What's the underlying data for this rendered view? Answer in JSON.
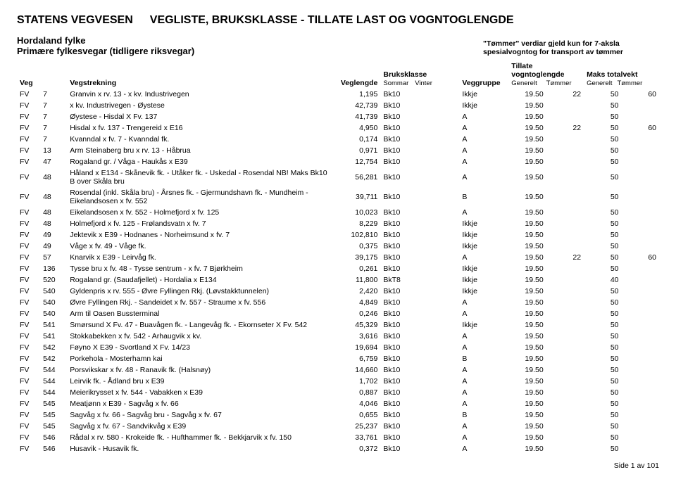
{
  "header": {
    "org": "STATENS VEGVESEN",
    "title": "VEGLISTE, BRUKSKLASSE - TILLATE LAST OG VOGNTOGLENGDE",
    "region": "Hordaland fylke",
    "subregion": "Primære fylkesvegar (tidligere riksvegar)",
    "note1": "\"Tømmer\" verdiar gjeld kun for 7-aksla",
    "note2": "spesialvogntog for transport av tømmer"
  },
  "columns": {
    "veg": "Veg",
    "vegstrekning": "Vegstrekning",
    "veglengde": "Veglengde",
    "bruksklasse": "Bruksklasse",
    "bk_sub1": "Sommar",
    "bk_sub2": "Vinter",
    "veggruppe": "Veggruppe",
    "tillate": "Tillate vogntoglengde",
    "til_sub1": "Generelt",
    "til_sub2": "Tømmer",
    "maks": "Maks totalvekt",
    "maks_sub1": "Generelt",
    "maks_sub2": "Tømmer"
  },
  "rows": [
    {
      "t": "FV",
      "n": "7",
      "d": "Granvin x rv. 13 - x kv. Industrivegen",
      "len": "1,195",
      "bk": "Bk10",
      "grp": "Ikkje",
      "tg": "19.50",
      "tt": "22",
      "mg": "50",
      "mt": "60"
    },
    {
      "t": "FV",
      "n": "7",
      "d": "x kv. Industrivegen - Øystese",
      "len": "42,739",
      "bk": "Bk10",
      "grp": "Ikkje",
      "tg": "19.50",
      "tt": "",
      "mg": "50",
      "mt": ""
    },
    {
      "t": "FV",
      "n": "7",
      "d": "Øystese - Hisdal X Fv. 137",
      "len": "41,739",
      "bk": "Bk10",
      "grp": "A",
      "tg": "19.50",
      "tt": "",
      "mg": "50",
      "mt": ""
    },
    {
      "t": "FV",
      "n": "7",
      "d": "Hisdal x fv. 137 - Trengereid x E16",
      "len": "4,950",
      "bk": "Bk10",
      "grp": "A",
      "tg": "19.50",
      "tt": "22",
      "mg": "50",
      "mt": "60"
    },
    {
      "t": "FV",
      "n": "7",
      "d": "Kvanndal x fv. 7 - Kvanndal fk.",
      "len": "0,174",
      "bk": "Bk10",
      "grp": "A",
      "tg": "19.50",
      "tt": "",
      "mg": "50",
      "mt": ""
    },
    {
      "t": "FV",
      "n": "13",
      "d": "Arm Steinaberg bru x rv. 13 - Håbrua",
      "len": "0,971",
      "bk": "Bk10",
      "grp": "A",
      "tg": "19.50",
      "tt": "",
      "mg": "50",
      "mt": ""
    },
    {
      "t": "FV",
      "n": "47",
      "d": "Rogaland gr. / Våga - Haukås x E39",
      "len": "12,754",
      "bk": "Bk10",
      "grp": "A",
      "tg": "19.50",
      "tt": "",
      "mg": "50",
      "mt": ""
    },
    {
      "t": "FV",
      "n": "48",
      "d": "Håland x E134 - Skånevik fk. - Utåker fk. - Uskedal - Rosendal NB! Maks Bk10 B over Skåla bru",
      "len": "56,281",
      "bk": "Bk10",
      "grp": "A",
      "tg": "19.50",
      "tt": "",
      "mg": "50",
      "mt": ""
    },
    {
      "t": "FV",
      "n": "48",
      "d": "Rosendal (inkl. Skåla bru) - Årsnes fk. - Gjermundshavn fk. - Mundheim - Eikelandsosen x fv. 552",
      "len": "39,711",
      "bk": "Bk10",
      "grp": "B",
      "tg": "19.50",
      "tt": "",
      "mg": "50",
      "mt": ""
    },
    {
      "t": "FV",
      "n": "48",
      "d": "Eikelandsosen x fv. 552 - Holmefjord x fv. 125",
      "len": "10,023",
      "bk": "Bk10",
      "grp": "A",
      "tg": "19.50",
      "tt": "",
      "mg": "50",
      "mt": ""
    },
    {
      "t": "FV",
      "n": "48",
      "d": "Holmefjord x fv. 125 - Frølandsvatn x fv. 7",
      "len": "8,229",
      "bk": "Bk10",
      "grp": "Ikkje",
      "tg": "19.50",
      "tt": "",
      "mg": "50",
      "mt": ""
    },
    {
      "t": "FV",
      "n": "49",
      "d": "Jektevik x E39 - Hodnanes - Norheimsund x fv. 7",
      "len": "102,810",
      "bk": "Bk10",
      "grp": "Ikkje",
      "tg": "19.50",
      "tt": "",
      "mg": "50",
      "mt": ""
    },
    {
      "t": "FV",
      "n": "49",
      "d": "Våge x fv. 49 - Våge fk.",
      "len": "0,375",
      "bk": "Bk10",
      "grp": "Ikkje",
      "tg": "19.50",
      "tt": "",
      "mg": "50",
      "mt": ""
    },
    {
      "t": "FV",
      "n": "57",
      "d": "Knarvik x E39 - Leirvåg fk.",
      "len": "39,175",
      "bk": "Bk10",
      "grp": "A",
      "tg": "19.50",
      "tt": "22",
      "mg": "50",
      "mt": "60"
    },
    {
      "t": "FV",
      "n": "136",
      "d": "Tysse bru x fv. 48 - Tysse sentrum - x fv. 7 Bjørkheim",
      "len": "0,261",
      "bk": "Bk10",
      "grp": "Ikkje",
      "tg": "19.50",
      "tt": "",
      "mg": "50",
      "mt": ""
    },
    {
      "t": "FV",
      "n": "520",
      "d": "Rogaland gr. (Saudafjellet) - Hordalia x E134",
      "len": "11,800",
      "bk": "BkT8",
      "grp": "Ikkje",
      "tg": "19.50",
      "tt": "",
      "mg": "40",
      "mt": ""
    },
    {
      "t": "FV",
      "n": "540",
      "d": "Gyldenpris x rv. 555 - Øvre Fyllingen Rkj. (Løvstakktunnelen)",
      "len": "2,420",
      "bk": "Bk10",
      "grp": "Ikkje",
      "tg": "19.50",
      "tt": "",
      "mg": "50",
      "mt": ""
    },
    {
      "t": "FV",
      "n": "540",
      "d": "Øvre Fyllingen Rkj. - Sandeidet x fv. 557 - Straume x fv. 556",
      "len": "4,849",
      "bk": "Bk10",
      "grp": "A",
      "tg": "19.50",
      "tt": "",
      "mg": "50",
      "mt": ""
    },
    {
      "t": "FV",
      "n": "540",
      "d": "Arm til Oasen Bussterminal",
      "len": "0,246",
      "bk": "Bk10",
      "grp": "A",
      "tg": "19.50",
      "tt": "",
      "mg": "50",
      "mt": ""
    },
    {
      "t": "FV",
      "n": "541",
      "d": "Smørsund X Fv. 47 - Buavågen fk. - Langevåg fk. - Ekornseter X Fv. 542",
      "len": "45,329",
      "bk": "Bk10",
      "grp": "Ikkje",
      "tg": "19.50",
      "tt": "",
      "mg": "50",
      "mt": ""
    },
    {
      "t": "FV",
      "n": "541",
      "d": "Stokkabekken x fv. 542 - Arhaugvik x kv.",
      "len": "3,616",
      "bk": "Bk10",
      "grp": "A",
      "tg": "19.50",
      "tt": "",
      "mg": "50",
      "mt": ""
    },
    {
      "t": "FV",
      "n": "542",
      "d": "Føyno X E39 - Svortland X Fv. 14/23",
      "len": "19,694",
      "bk": "Bk10",
      "grp": "A",
      "tg": "19.50",
      "tt": "",
      "mg": "50",
      "mt": ""
    },
    {
      "t": "FV",
      "n": "542",
      "d": "Porkehola - Mosterhamn kai",
      "len": "6,759",
      "bk": "Bk10",
      "grp": "B",
      "tg": "19.50",
      "tt": "",
      "mg": "50",
      "mt": ""
    },
    {
      "t": "FV",
      "n": "544",
      "d": "Porsvikskar x fv. 48 - Ranavik fk. (Halsnøy)",
      "len": "14,660",
      "bk": "Bk10",
      "grp": "A",
      "tg": "19.50",
      "tt": "",
      "mg": "50",
      "mt": ""
    },
    {
      "t": "FV",
      "n": "544",
      "d": "Leirvik fk. - Ådland bru x E39",
      "len": "1,702",
      "bk": "Bk10",
      "grp": "A",
      "tg": "19.50",
      "tt": "",
      "mg": "50",
      "mt": ""
    },
    {
      "t": "FV",
      "n": "544",
      "d": "Meierikrysset x fv. 544 - Vabakken x E39",
      "len": "0,887",
      "bk": "Bk10",
      "grp": "A",
      "tg": "19.50",
      "tt": "",
      "mg": "50",
      "mt": ""
    },
    {
      "t": "FV",
      "n": "545",
      "d": "Meatjønn x E39 - Sagvåg x fv. 66",
      "len": "4,046",
      "bk": "Bk10",
      "grp": "A",
      "tg": "19.50",
      "tt": "",
      "mg": "50",
      "mt": ""
    },
    {
      "t": "FV",
      "n": "545",
      "d": "Sagvåg x fv. 66 - Sagvåg bru - Sagvåg x fv. 67",
      "len": "0,655",
      "bk": "Bk10",
      "grp": "B",
      "tg": "19.50",
      "tt": "",
      "mg": "50",
      "mt": ""
    },
    {
      "t": "FV",
      "n": "545",
      "d": "Sagvåg x fv. 67 - Sandvikvåg x E39",
      "len": "25,237",
      "bk": "Bk10",
      "grp": "A",
      "tg": "19.50",
      "tt": "",
      "mg": "50",
      "mt": ""
    },
    {
      "t": "FV",
      "n": "546",
      "d": "Rådal x rv. 580 - Krokeide fk. - Hufthammer fk. - Bekkjarvik x fv. 150",
      "len": "33,761",
      "bk": "Bk10",
      "grp": "A",
      "tg": "19.50",
      "tt": "",
      "mg": "50",
      "mt": ""
    },
    {
      "t": "FV",
      "n": "546",
      "d": "Husavik - Husavik fk.",
      "len": "0,372",
      "bk": "Bk10",
      "grp": "A",
      "tg": "19.50",
      "tt": "",
      "mg": "50",
      "mt": ""
    }
  ],
  "footer": "Side 1 av 101"
}
